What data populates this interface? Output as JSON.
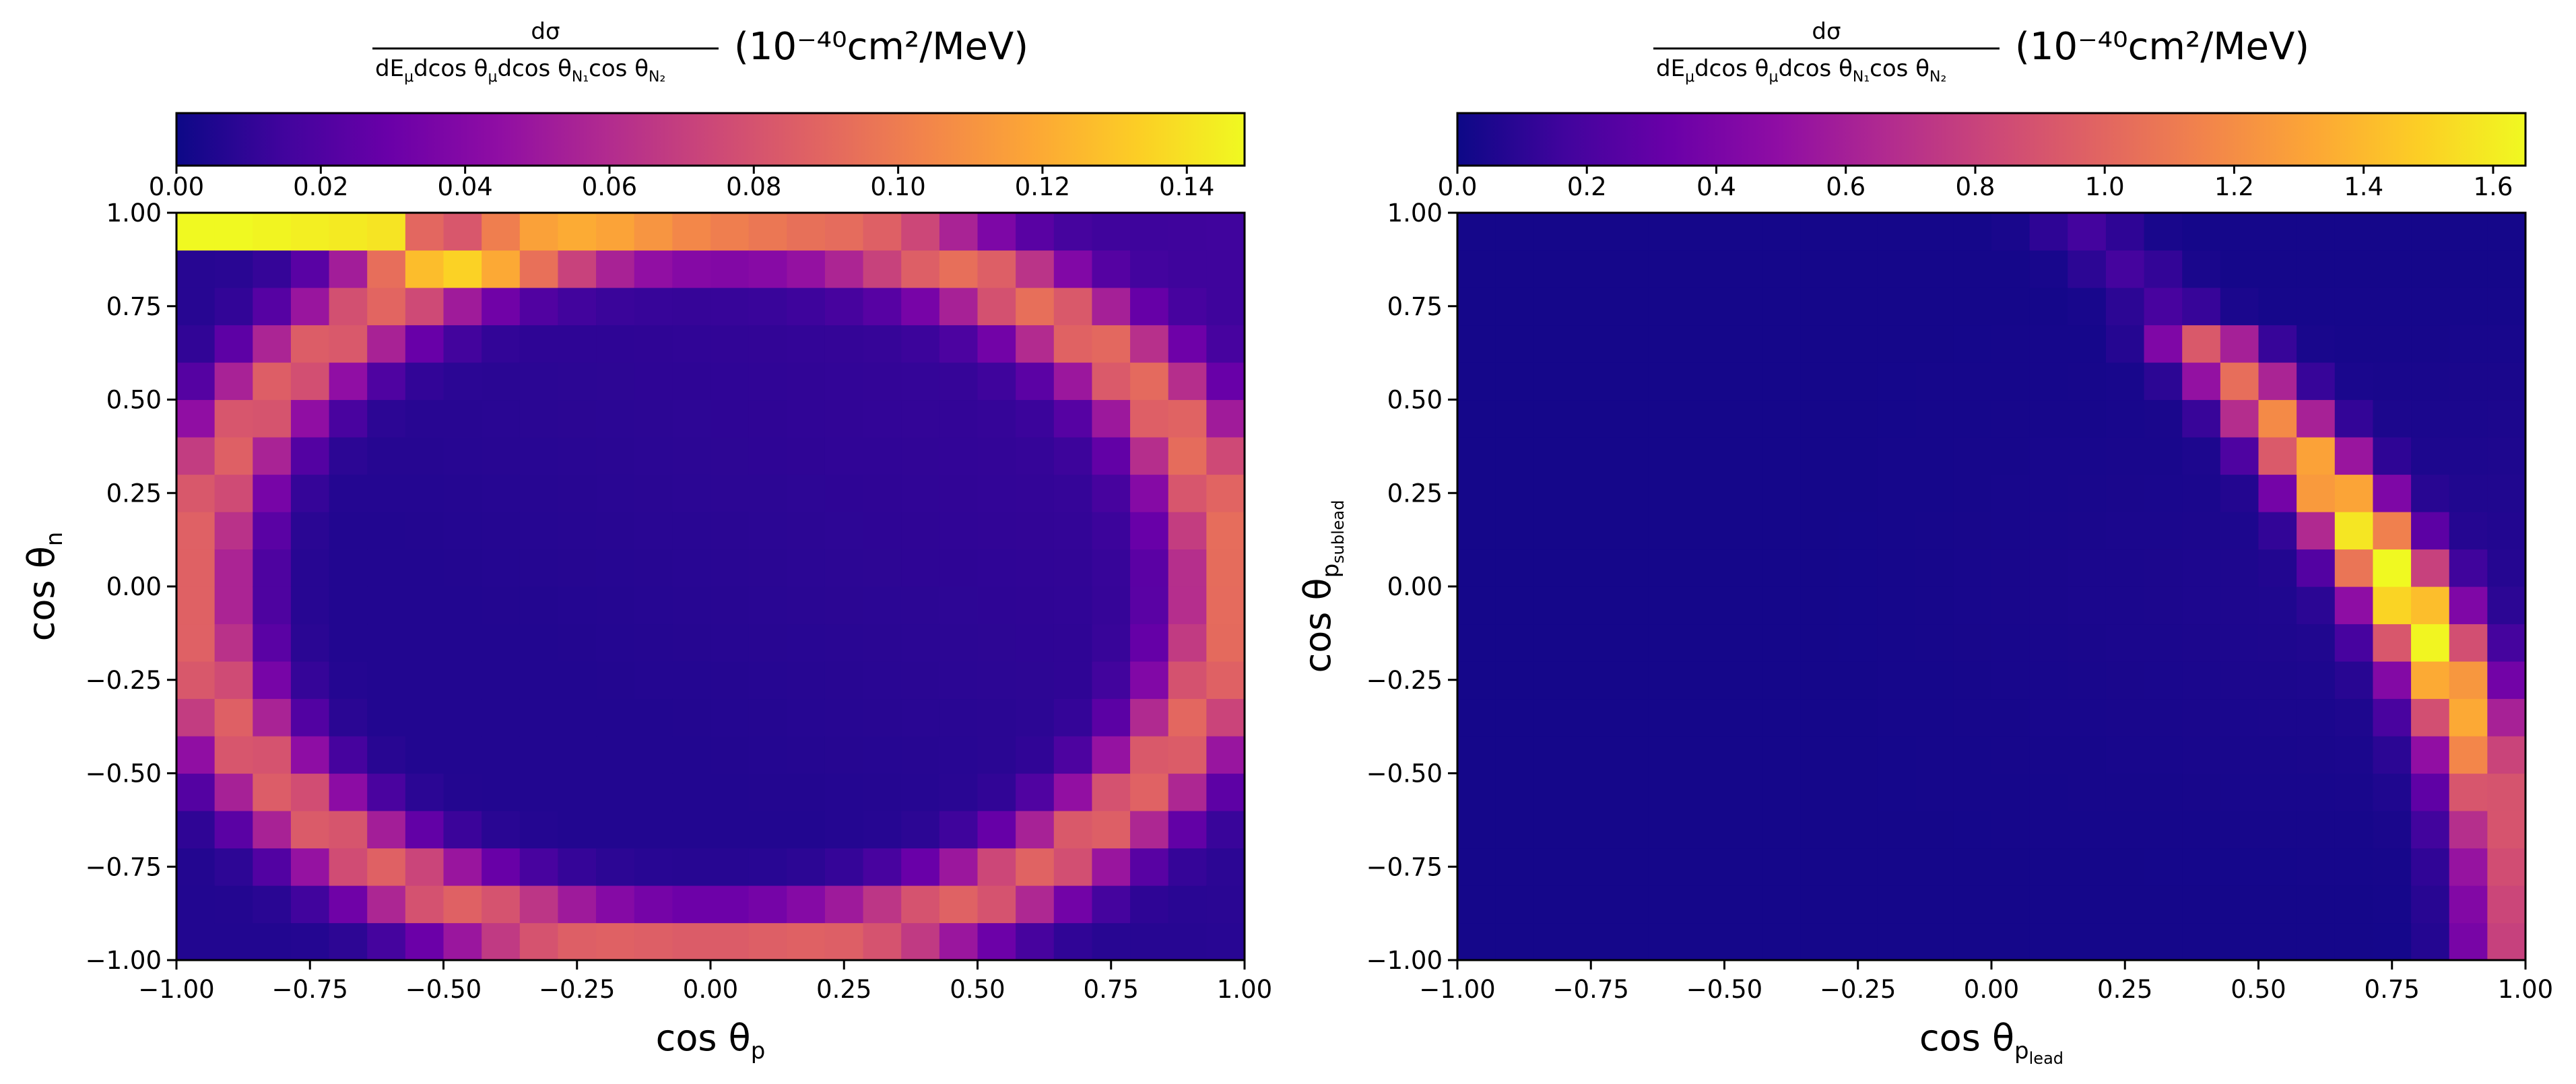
{
  "colors": {
    "colormap": "plasma",
    "ramp": [
      "#0d0887",
      "#41049d",
      "#6a00a8",
      "#8f0da4",
      "#b12a90",
      "#cc4778",
      "#e16462",
      "#f2844b",
      "#fca636",
      "#fcce25",
      "#f0f921"
    ],
    "axis": "#000000",
    "background": "#ffffff"
  },
  "chart_data": [
    {
      "type": "heatmap",
      "colormap": "plasma",
      "colorbar": {
        "placement": "top",
        "range": [
          0,
          0.148
        ],
        "ticks": [
          "0.00",
          "0.02",
          "0.04",
          "0.06",
          "0.08",
          "0.10",
          "0.12",
          "0.14"
        ],
        "label_numerator": "dσ",
        "label_denominator_parts": [
          "dE",
          "μ",
          "dcos θ",
          "μ",
          "dcos θ",
          "N₁",
          "cos θ",
          "N₂"
        ],
        "label_units": "(10⁻⁴⁰cm²/MeV)"
      },
      "x_bins": 28,
      "y_bins": 20,
      "xlim": [
        -1,
        1
      ],
      "ylim": [
        -1,
        1
      ],
      "x_ticks": [
        "−1.00",
        "−0.75",
        "−0.50",
        "−0.25",
        "0.00",
        "0.25",
        "0.50",
        "0.75",
        "1.00"
      ],
      "y_ticks": [
        "−1.00",
        "−0.75",
        "−0.50",
        "−0.25",
        "0.00",
        "0.25",
        "0.50",
        "0.75",
        "1.00"
      ],
      "xlabel": {
        "main": "cos θ",
        "sub": "p"
      },
      "ylabel": {
        "main": "cos θ",
        "sub": "n"
      },
      "ridge": {
        "description": "peak along curve from (x=-0.84, y=0.97) to (x=0.95, y=-1.0)",
        "peak_value": 0.148
      }
    },
    {
      "type": "heatmap",
      "colormap": "plasma",
      "colorbar": {
        "placement": "top",
        "range": [
          0,
          1.65
        ],
        "ticks": [
          "0.0",
          "0.2",
          "0.4",
          "0.6",
          "0.8",
          "1.0",
          "1.2",
          "1.4",
          "1.6"
        ],
        "label_numerator": "dσ",
        "label_denominator_parts": [
          "dE",
          "μ",
          "dcos θ",
          "μ",
          "dcos θ",
          "N₁",
          "cos θ",
          "N₂"
        ],
        "label_units": "(10⁻⁴⁰cm²/MeV)"
      },
      "x_bins": 28,
      "y_bins": 20,
      "xlim": [
        -1,
        1
      ],
      "ylim": [
        -1,
        1
      ],
      "x_ticks": [
        "−1.00",
        "−0.75",
        "−0.50",
        "−0.25",
        "0.00",
        "0.25",
        "0.50",
        "0.75",
        "1.00"
      ],
      "y_ticks": [
        "−1.00",
        "−0.75",
        "−0.50",
        "−0.25",
        "0.00",
        "0.25",
        "0.50",
        "0.75",
        "1.00"
      ],
      "xlabel": {
        "main": "cos θ",
        "sub": "p",
        "subsub": "lead"
      },
      "ylabel": {
        "main": "cos θ",
        "sub": "p",
        "subsub": "sublead"
      },
      "ridge": {
        "description": "peak near (x=0.77, y=0.0) curving from (0.45, 0.55) to (0.97, -1.0)",
        "peak_value": 1.65
      }
    }
  ]
}
